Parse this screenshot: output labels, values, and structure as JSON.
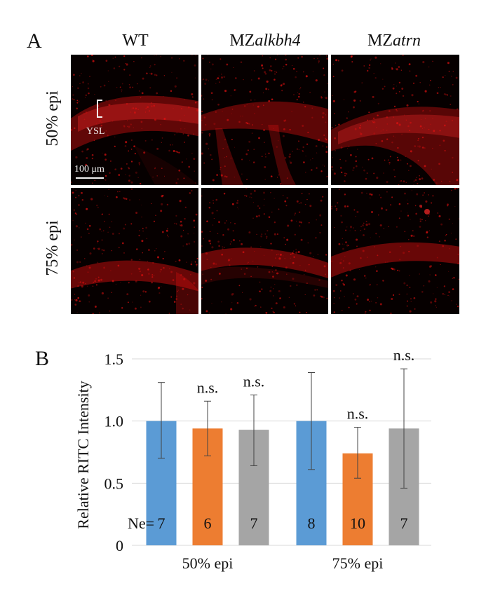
{
  "figure": {
    "panel_a_label": "A",
    "panel_b_label": "B",
    "column_labels": [
      {
        "prefix": "WT",
        "italic": ""
      },
      {
        "prefix": "MZ",
        "italic": "alkbh4"
      },
      {
        "prefix": "MZ",
        "italic": "atrn"
      }
    ],
    "row_labels": [
      "50% epi",
      "75% epi"
    ],
    "ysl_label": "YSL",
    "scale_bar_label": "100 μm"
  },
  "colors": {
    "signal_red": "#e01010",
    "background_dark": "#060000",
    "bar_wt": "#5b9bd5",
    "bar_alkbh4": "#ed7d31",
    "bar_atrn": "#a5a5a5",
    "gridline": "#d9d9d9"
  },
  "chart_data": {
    "type": "bar",
    "ylabel": "Relative RITC Intensity",
    "xlabel": "",
    "ylim": [
      0,
      1.5
    ],
    "yticks": [
      "0",
      "0.5",
      "1.0",
      "1.5"
    ],
    "categories": [
      "50% epi",
      "75% epi"
    ],
    "ne_label": "Ne=",
    "series": [
      {
        "values": [
          1.0,
          1.0
        ],
        "err_low": [
          0.7,
          0.61
        ],
        "err_high": [
          1.31,
          1.39
        ],
        "n": [
          "7",
          "8"
        ],
        "annot": [
          "",
          ""
        ]
      },
      {
        "values": [
          0.94,
          0.74
        ],
        "err_low": [
          0.72,
          0.54
        ],
        "err_high": [
          1.16,
          0.95
        ],
        "n": [
          "6",
          "10"
        ],
        "annot": [
          "n.s.",
          "n.s."
        ]
      },
      {
        "values": [
          0.93,
          0.94
        ],
        "err_low": [
          0.64,
          0.46
        ],
        "err_high": [
          1.21,
          1.42
        ],
        "n": [
          "7",
          "7"
        ],
        "annot": [
          "n.s.",
          "n.s."
        ]
      }
    ],
    "grid": true,
    "legend": "none"
  }
}
